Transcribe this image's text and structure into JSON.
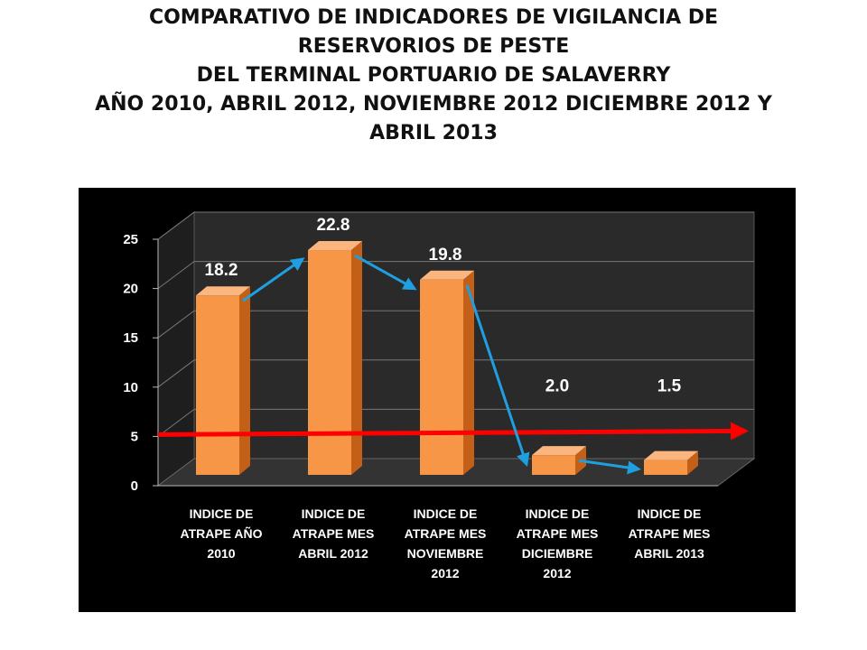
{
  "title_lines": [
    "COMPARATIVO DE INDICADORES DE VIGILANCIA DE",
    "RESERVORIOS DE PESTE",
    "DEL TERMINAL PORTUARIO DE SALAVERRY",
    "AÑO 2010, ABRIL 2012, NOVIEMBRE 2012 DICIEMBRE 2012 Y",
    "ABRIL 2013"
  ],
  "colors": {
    "background": "#000000",
    "bar": "#f79646",
    "bar_dark": "#c45f17",
    "threshold_line": "#ff0000",
    "arrows": "#1f9fe0"
  },
  "chart_data": {
    "type": "bar",
    "title": "COMPARATIVO DE INDICADORES DE VIGILANCIA DE RESERVORIOS DE PESTE DEL TERMINAL PORTUARIO DE SALAVERRY AÑO 2010, ABRIL 2012, NOVIEMBRE 2012 DICIEMBRE 2012 Y ABRIL 2013",
    "categories": [
      [
        "INDICE DE",
        "ATRAPE AÑO",
        "2010"
      ],
      [
        "INDICE DE",
        "ATRAPE MES",
        "ABRIL 2012"
      ],
      [
        "INDICE DE",
        "ATRAPE MES",
        "NOVIEMBRE",
        "2012"
      ],
      [
        "INDICE DE",
        "ATRAPE MES",
        "DICIEMBRE",
        "2012"
      ],
      [
        "INDICE DE",
        "ATRAPE MES",
        "ABRIL 2013"
      ]
    ],
    "values": [
      18.2,
      22.8,
      19.8,
      2.0,
      1.5
    ],
    "data_labels": [
      "18.2",
      "22.8",
      "19.8",
      "2.0",
      "1.5"
    ],
    "yticks": [
      "0",
      "5",
      "10",
      "15",
      "20",
      "25"
    ],
    "ylim": [
      0,
      25
    ],
    "threshold": 5,
    "grid": true,
    "legend": "none"
  }
}
